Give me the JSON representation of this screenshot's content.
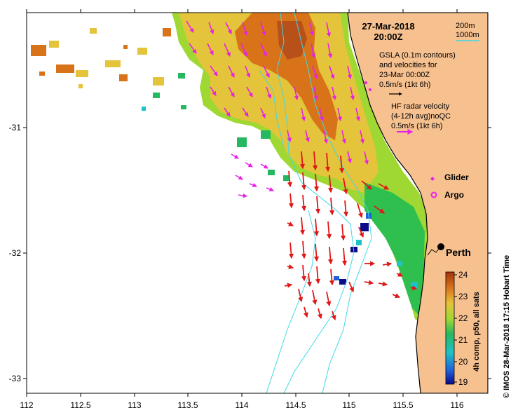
{
  "title": {
    "date": "27-Mar-2018",
    "time": "20:00Z"
  },
  "depth_legend": {
    "contour_a": "200m",
    "contour_b": "1000m"
  },
  "gsla_legend": {
    "line1": "GSLA (0.1m contours)",
    "line2": "and velocities for",
    "line3": "23-Mar 00:00Z",
    "line4": "0.5m/s (1kt 6h)"
  },
  "hf_legend": {
    "line1": "HF radar velocity",
    "line2": "(4-12h avg)noQC",
    "line3": "0.5m/s (1kt 6h)"
  },
  "markers": {
    "glider": "Glider",
    "argo": "Argo",
    "city": "Perth"
  },
  "colorbar": {
    "label": "4h comp, p50, all sats",
    "ticks": [
      "24",
      "23",
      "22",
      "21",
      "20",
      "19"
    ],
    "colors": [
      "#a1320b",
      "#d9731a",
      "#e3c43a",
      "#9fd832",
      "#26b860",
      "#1fc2c6",
      "#1f5fd8",
      "#0a0a8a"
    ]
  },
  "credit": "© IMOS 28-Mar-2018 17:15 Hobart Time",
  "axes": {
    "x_ticks": [
      "112",
      "112.5",
      "113",
      "113.5",
      "114",
      "114.5",
      "115",
      "115.5",
      "116"
    ],
    "y_ticks": [
      "-31",
      "-32",
      "-33"
    ]
  },
  "map_extent": {
    "lon_min": 112,
    "lon_max": 116.3,
    "lat_max": -30.1,
    "lat_min": -33.1
  },
  "colors": {
    "land": "#f6c08f",
    "gsla_arrow": "#e622e6",
    "hf_arrow": "#e01818",
    "contour": "#40d8e8"
  }
}
